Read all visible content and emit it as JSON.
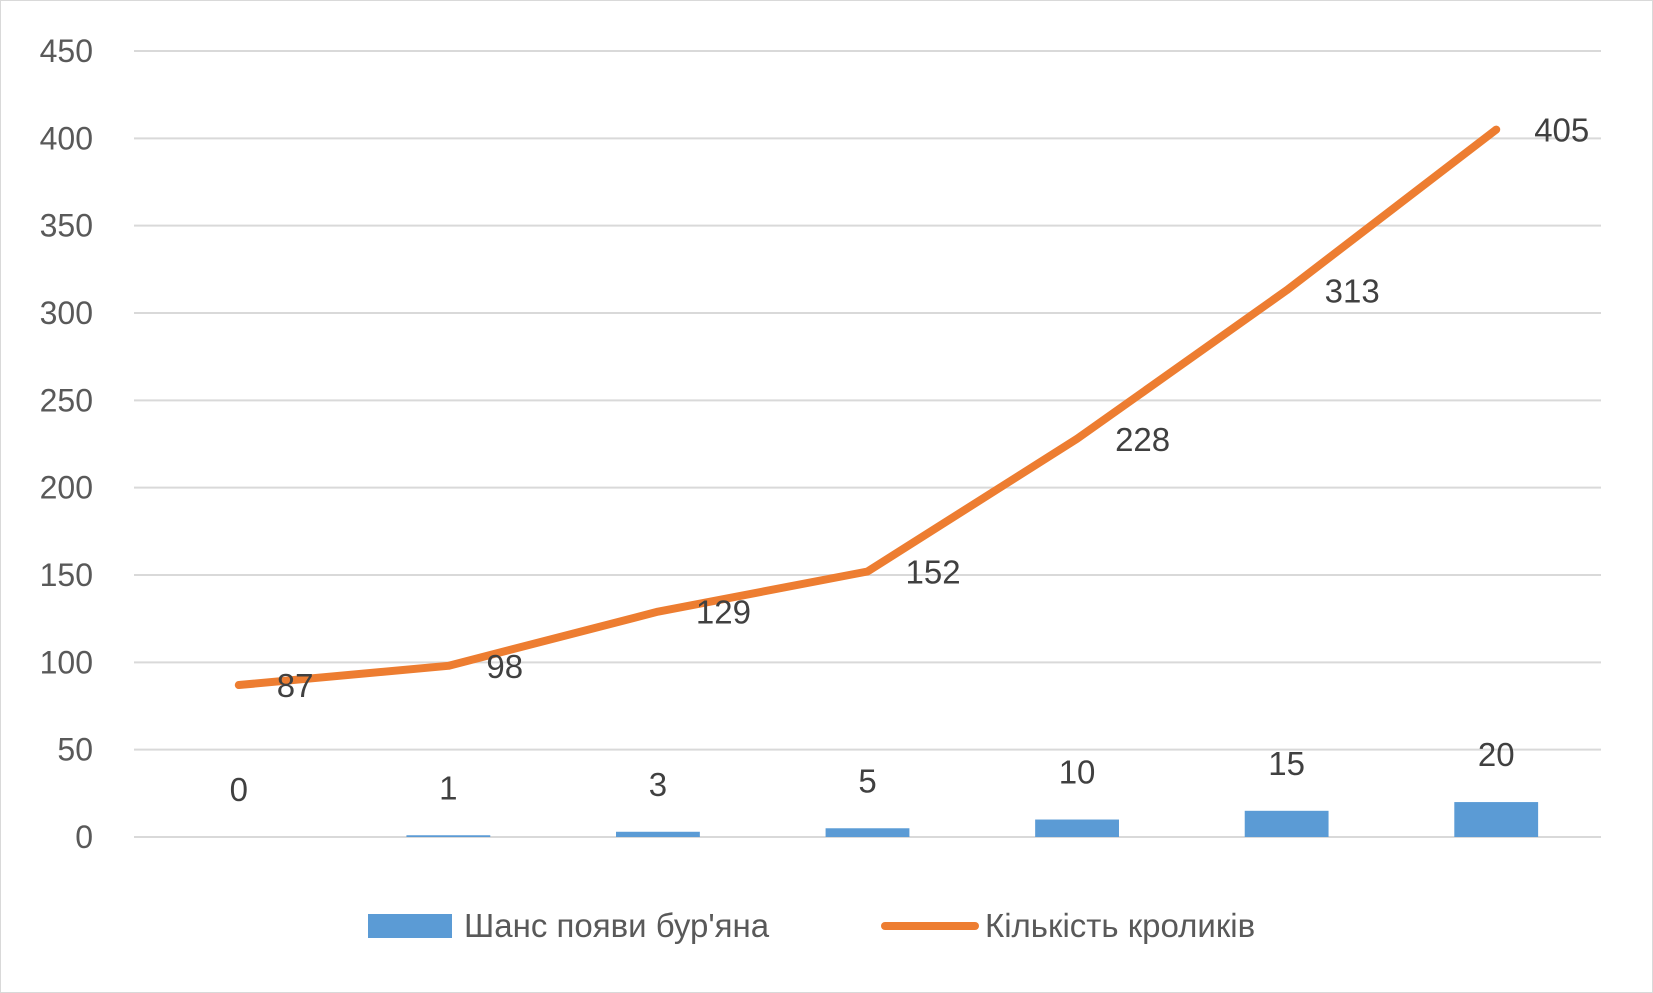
{
  "chart_data": {
    "type": "bar",
    "categories": [
      "0",
      "1",
      "3",
      "5",
      "10",
      "15",
      "20"
    ],
    "ylim": [
      0,
      450
    ],
    "yticks": [
      0,
      50,
      100,
      150,
      200,
      250,
      300,
      350,
      400,
      450
    ],
    "grid": true,
    "legend_position": "bottom",
    "series": [
      {
        "name": "Шанс появи бур'яна",
        "type": "bar",
        "color": "#5b9bd5",
        "values": [
          0,
          1,
          3,
          5,
          10,
          15,
          20
        ],
        "data_labels": [
          "0",
          "1",
          "3",
          "5",
          "10",
          "15",
          "20"
        ]
      },
      {
        "name": "Кількість кроликів",
        "type": "line",
        "color": "#ed7d31",
        "values": [
          87,
          98,
          129,
          152,
          228,
          313,
          405
        ],
        "data_labels": [
          "87",
          "98",
          "129",
          "152",
          "228",
          "313",
          "405"
        ]
      }
    ]
  }
}
